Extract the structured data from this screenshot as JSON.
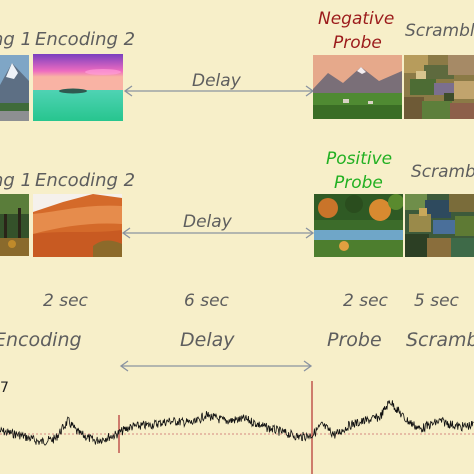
{
  "rows": [
    {
      "encoding1_label": "ng 1",
      "encoding2_label": "Encoding 2",
      "delay_label": "Delay",
      "probe_label_line1": "Negative",
      "probe_label_line2": "Probe",
      "scramble_label": "Scramble",
      "probe_color": "#9b1b1b"
    },
    {
      "encoding1_label": "ng 1",
      "encoding2_label": "Encoding 2",
      "delay_label": "Delay",
      "probe_label_line1": "Positive",
      "probe_label_line2": "Probe",
      "scramble_label": "Scramb",
      "probe_color": "#22b022"
    }
  ],
  "durations": {
    "encoding": "2 sec",
    "delay": "6 sec",
    "probe": "2 sec",
    "scramble": "5 sec"
  },
  "phases": {
    "encoding": "Encoding",
    "delay": "Delay",
    "probe": "Probe",
    "scramble": "Scramb"
  },
  "signal": {
    "axis_label": "7",
    "trace_color": "#111111",
    "marker_color": "#b33030"
  },
  "colors": {
    "background": "#f7efc9",
    "label_gray": "#5e5e5e",
    "arrow_gray": "#8a93a0"
  }
}
